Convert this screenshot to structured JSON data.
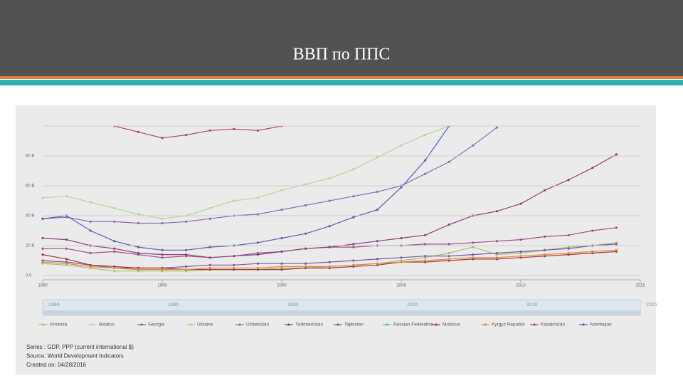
{
  "slide": {
    "title": "ВВП по ППС"
  },
  "chart_data": {
    "type": "line",
    "x": [
      1990,
      1991,
      1992,
      1993,
      1994,
      1995,
      1996,
      1997,
      1998,
      1999,
      2000,
      2001,
      2002,
      2003,
      2004,
      2005,
      2006,
      2007,
      2008,
      2009,
      2010,
      2011,
      2012,
      2013,
      2014
    ],
    "xlim": [
      1990,
      2015
    ],
    "xticks": [
      1990,
      1995,
      2000,
      2005,
      2010,
      2015
    ],
    "ylim": [
      0,
      100
    ],
    "yticks": [
      {
        "value": 0,
        "label": "0.0"
      },
      {
        "value": 20,
        "label": "20 B"
      },
      {
        "value": 40,
        "label": "40 B"
      },
      {
        "value": 60,
        "label": "60 B"
      },
      {
        "value": 80,
        "label": "80 B"
      }
    ],
    "grid": true,
    "series": [
      {
        "name": "Armenia",
        "color": "#9dc46e",
        "values": [
          8,
          7,
          5,
          3,
          3,
          3,
          3,
          4,
          4,
          4,
          5,
          5,
          6,
          7,
          8,
          10,
          12,
          15,
          19,
          14,
          15,
          17,
          19,
          20,
          22
        ]
      },
      {
        "name": "Belarus",
        "color": "#b8d39a",
        "values": [
          52,
          53,
          49,
          45,
          41,
          38,
          40,
          45,
          50,
          52,
          57,
          61,
          65,
          71,
          79,
          87,
          94,
          100,
          null,
          null,
          null,
          null,
          null,
          null,
          null
        ]
      },
      {
        "name": "Georgia",
        "color": "#a04f8a",
        "values": [
          18,
          18,
          15,
          16,
          14,
          12,
          13,
          12,
          13,
          15,
          16,
          18,
          19,
          19,
          20,
          20,
          21,
          21,
          22,
          23,
          24,
          26,
          27,
          30,
          32
        ]
      },
      {
        "name": "Ukraine",
        "color": "#c9c96a",
        "values": [
          null,
          null,
          null,
          null,
          null,
          null,
          null,
          null,
          null,
          null,
          null,
          null,
          null,
          null,
          null,
          null,
          null,
          null,
          null,
          null,
          null,
          null,
          null,
          null,
          null
        ]
      },
      {
        "name": "Uzbekistan",
        "color": "#8a6fb0",
        "values": [
          38,
          39,
          36,
          36,
          35,
          35,
          36,
          38,
          40,
          41,
          44,
          47,
          50,
          53,
          56,
          60,
          68,
          76,
          87,
          99,
          null,
          null,
          null,
          null,
          null
        ]
      },
      {
        "name": "Turkmenistan",
        "color": "#8e3f7a",
        "values": [
          25,
          24,
          20,
          18,
          15,
          14,
          14,
          12,
          13,
          14,
          16,
          18,
          19,
          21,
          23,
          25,
          27,
          34,
          40,
          43,
          48,
          57,
          64,
          72,
          81
        ]
      },
      {
        "name": "Tajikistan",
        "color": "#7b57a3",
        "values": [
          10,
          9,
          7,
          5,
          5,
          5,
          6,
          7,
          7,
          8,
          8,
          8,
          9,
          10,
          11,
          12,
          13,
          13,
          14,
          15,
          16,
          17,
          18,
          20,
          21
        ]
      },
      {
        "name": "Russian Federation",
        "color": "#5ab4c5",
        "values": [
          null,
          null,
          null,
          null,
          null,
          null,
          null,
          null,
          null,
          null,
          null,
          null,
          null,
          null,
          null,
          null,
          null,
          null,
          null,
          null,
          null,
          null,
          null,
          null,
          null
        ]
      },
      {
        "name": "Moldova",
        "color": "#a33a3a",
        "values": [
          14,
          11,
          7,
          6,
          5,
          5,
          4,
          4,
          4,
          4,
          4,
          5,
          5,
          6,
          7,
          9,
          9,
          10,
          11,
          11,
          12,
          13,
          14,
          15,
          16
        ]
      },
      {
        "name": "Kyrgyz Republic",
        "color": "#e08a3c",
        "values": [
          9,
          8,
          6,
          5,
          4,
          4,
          4,
          5,
          5,
          5,
          6,
          6,
          6,
          7,
          8,
          9,
          10,
          11,
          12,
          12,
          13,
          14,
          15,
          16,
          17
        ]
      },
      {
        "name": "Kazakhstan",
        "color": "#b04070",
        "values": [
          null,
          null,
          null,
          100,
          96,
          92,
          94,
          97,
          98,
          97,
          100,
          null,
          null,
          null,
          null,
          null,
          null,
          null,
          null,
          null,
          null,
          null,
          null,
          null,
          null
        ]
      },
      {
        "name": "Azerbaijan",
        "color": "#5e5ab3",
        "values": [
          38,
          40,
          30,
          23,
          19,
          17,
          17,
          19,
          20,
          22,
          25,
          28,
          33,
          39,
          44,
          59,
          77,
          100,
          null,
          null,
          null,
          null,
          null,
          null,
          null
        ]
      }
    ],
    "notes": [
      "Series : GDP, PPP (current international $)",
      "Source: World Development Indicators",
      "Created on: 04/28/2016"
    ]
  }
}
